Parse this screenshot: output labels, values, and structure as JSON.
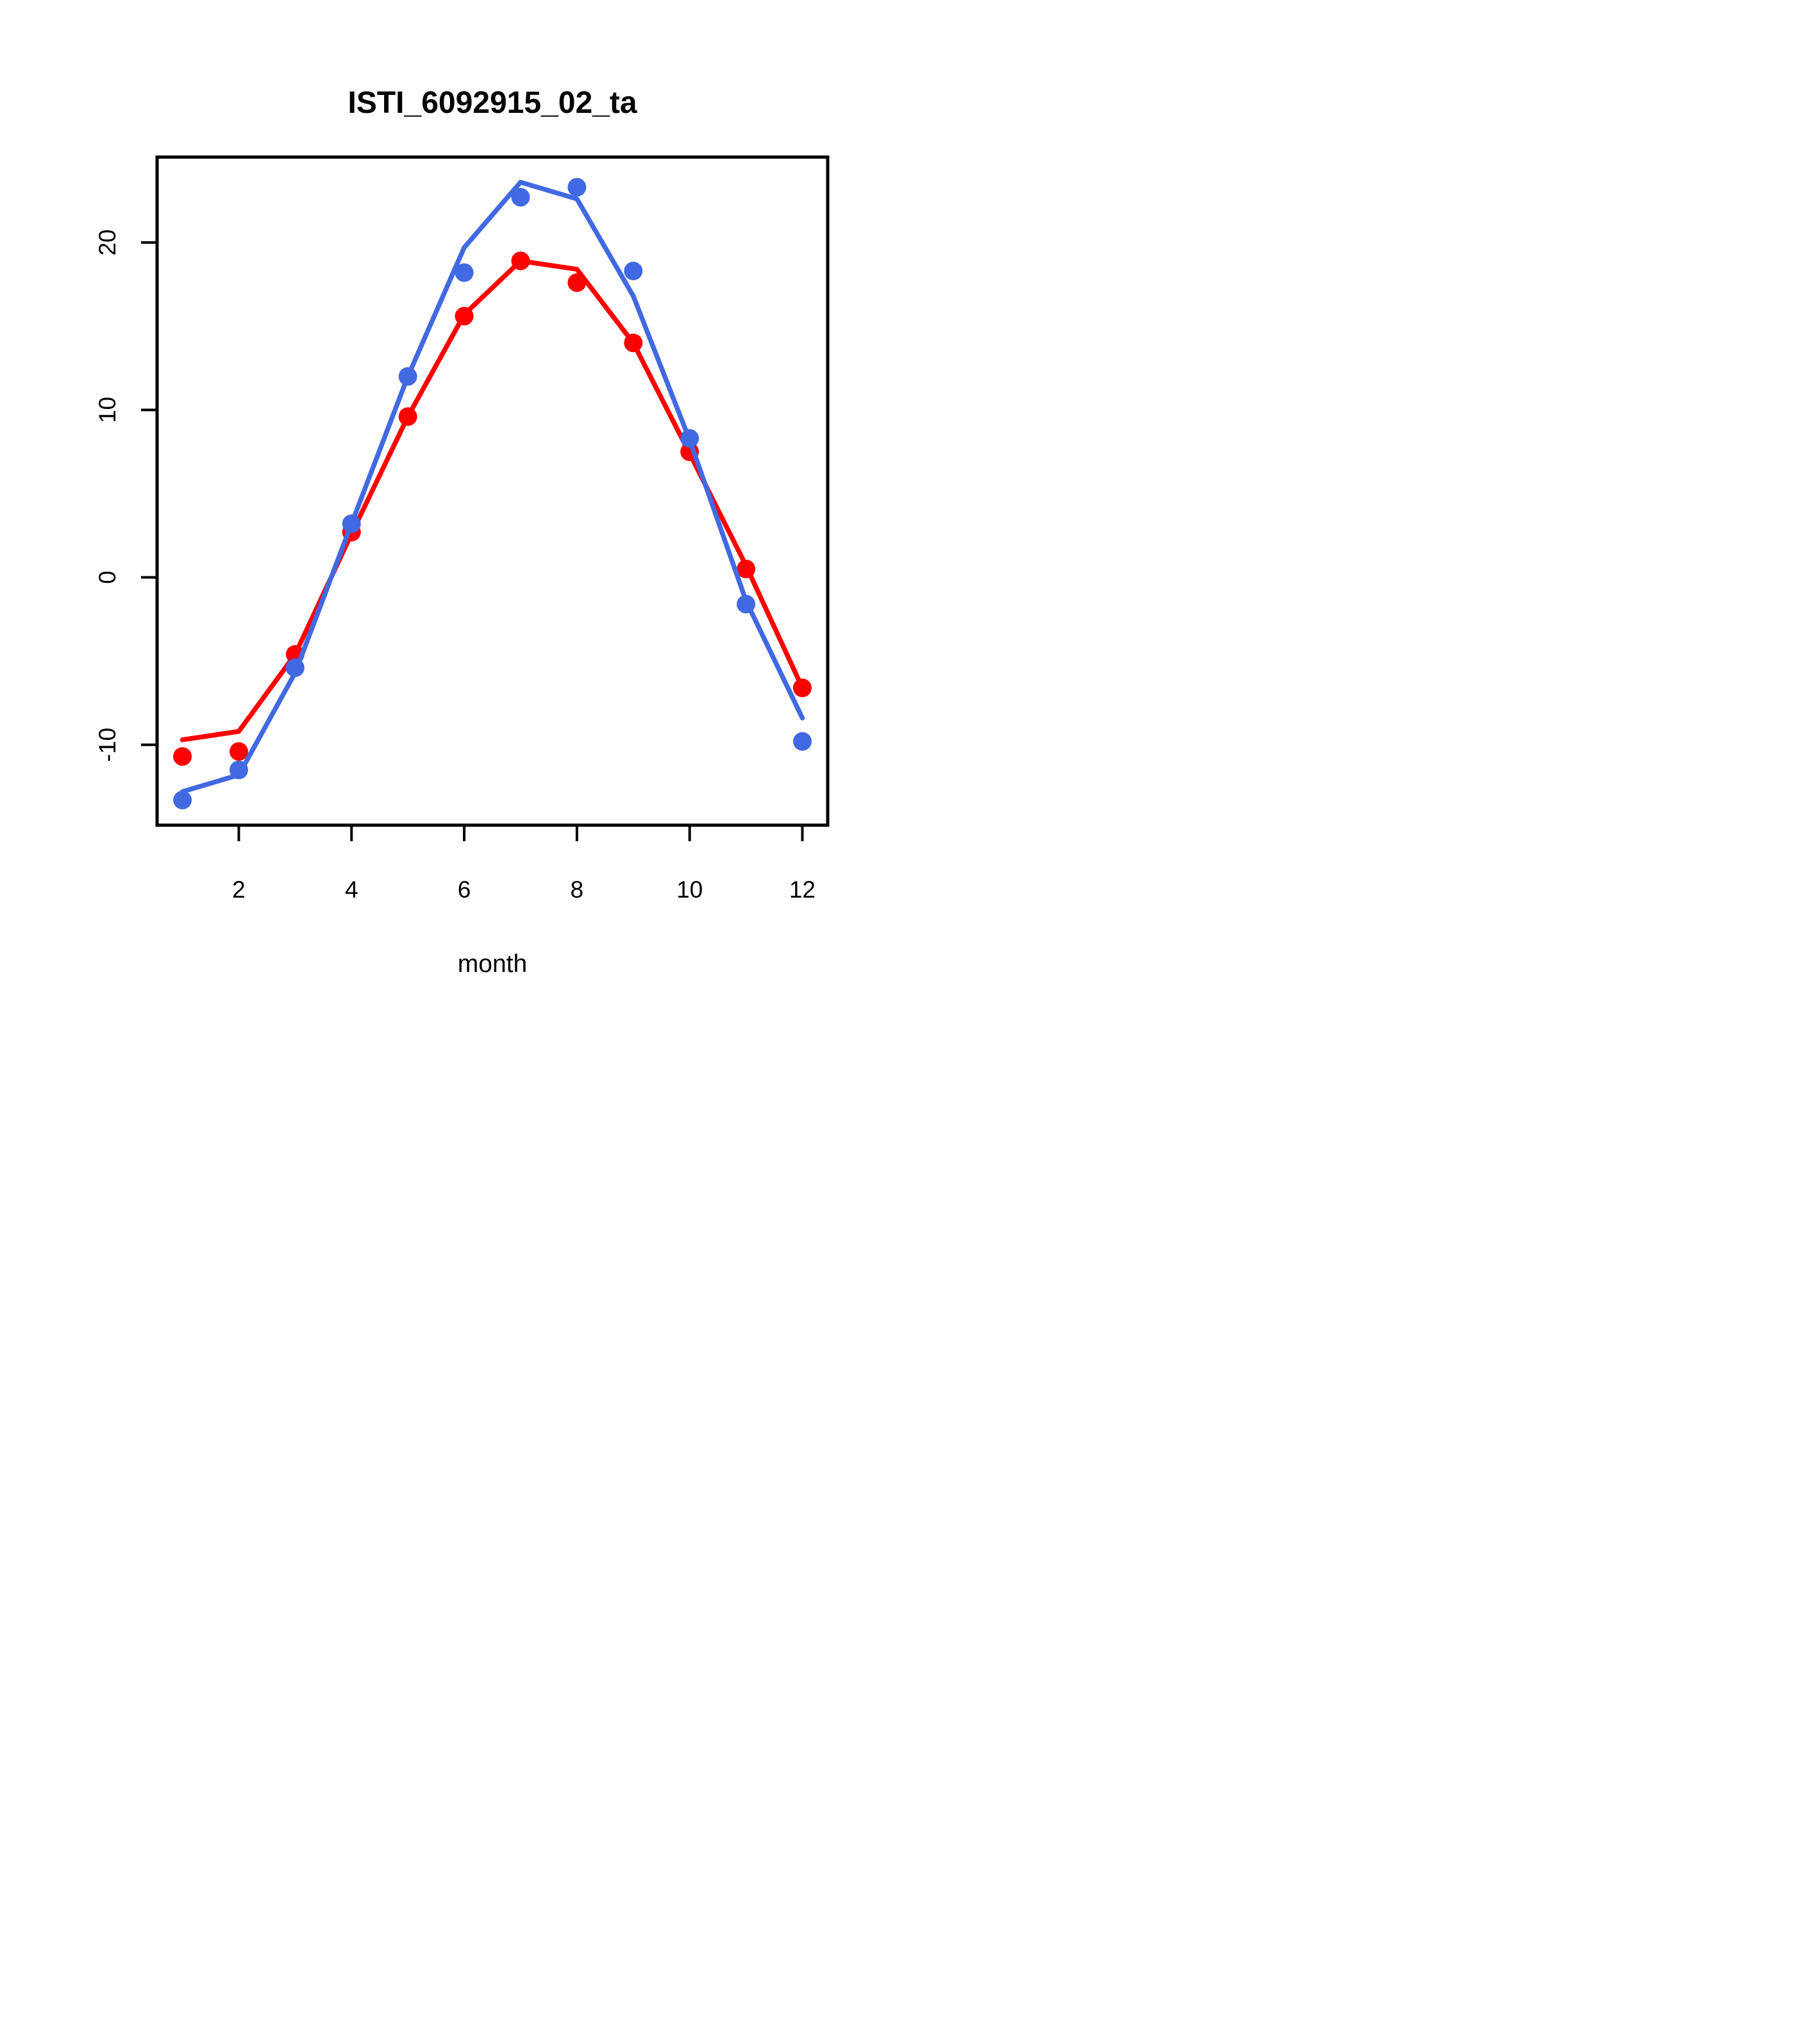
{
  "chart_data": {
    "type": "line",
    "title": "ISTI_6092915_02_ta",
    "xlabel": "month",
    "ylabel": "",
    "x": [
      1,
      2,
      3,
      4,
      5,
      6,
      7,
      8,
      9,
      10,
      11,
      12
    ],
    "xticks": [
      2,
      4,
      6,
      8,
      10,
      12
    ],
    "yticks": [
      -10,
      0,
      10,
      20
    ],
    "xlim": [
      0.55,
      12.45
    ],
    "ylim": [
      -14.8,
      25.1
    ],
    "grid": false,
    "legend": "none",
    "colors": {
      "red": "#FF0000",
      "blue": "#4169E1",
      "axis": "#000000",
      "background": "#FFFFFF"
    },
    "series": [
      {
        "name": "red-line",
        "style": "line",
        "color": "#FF0000",
        "values": [
          -9.7,
          -9.2,
          -4.6,
          2.6,
          9.6,
          15.7,
          18.9,
          18.4,
          14.0,
          7.4,
          0.7,
          -6.6
        ]
      },
      {
        "name": "red-points",
        "style": "points",
        "color": "#FF0000",
        "values": [
          -10.7,
          -10.4,
          -4.6,
          2.7,
          9.6,
          15.6,
          18.9,
          17.6,
          14.0,
          7.5,
          0.5,
          -6.6
        ]
      },
      {
        "name": "blue-line",
        "style": "line",
        "color": "#4169E1",
        "values": [
          -12.8,
          -11.8,
          -5.7,
          3.2,
          12.0,
          19.7,
          23.6,
          22.6,
          16.8,
          8.2,
          -1.4,
          -8.4
        ]
      },
      {
        "name": "blue-points",
        "style": "points",
        "color": "#4169E1",
        "values": [
          -13.3,
          -11.5,
          -5.4,
          3.2,
          12.0,
          18.2,
          22.7,
          23.3,
          18.3,
          8.3,
          -1.6,
          -9.8
        ]
      }
    ]
  }
}
